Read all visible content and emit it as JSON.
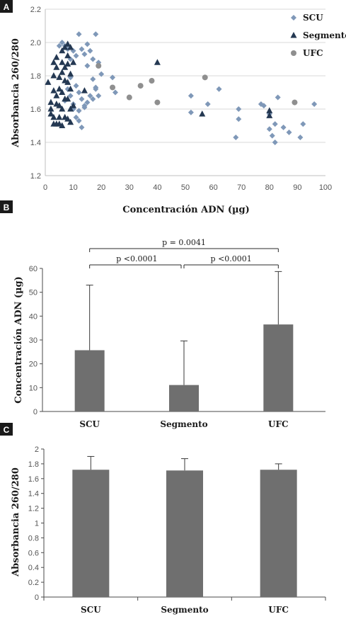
{
  "panels": [
    {
      "letter": "A"
    },
    {
      "letter": "B"
    },
    {
      "letter": "C"
    }
  ],
  "colors": {
    "scu": "#7f98b8",
    "segmento": "#243852",
    "ufc": "#8f8f8f",
    "bar": "#6f6f6f",
    "grid": "#d9d9d9"
  },
  "chart_data": [
    {
      "type": "scatter",
      "xlabel": "Concentración ADN (µg)",
      "ylabel": "Absorbancia 260/280",
      "xlim": [
        0,
        100
      ],
      "ylim": [
        1.2,
        2.2
      ],
      "xticks": [
        0,
        10,
        20,
        30,
        40,
        50,
        60,
        70,
        80,
        90,
        100
      ],
      "yticks": [
        1.2,
        1.4,
        1.6,
        1.8,
        2.0,
        2.2
      ],
      "ytick_labels": [
        "1.2",
        "1.4",
        "1.6",
        "1.8",
        "2.0",
        "2.2"
      ],
      "grid": "horizontal",
      "legend_position": "top-right",
      "series": [
        {
          "name": "SCU",
          "marker": "diamond",
          "points": [
            [
              5,
              1.98
            ],
            [
              6,
              2.0
            ],
            [
              7,
              1.98
            ],
            [
              8,
              1.96
            ],
            [
              9,
              1.9
            ],
            [
              10,
              1.95
            ],
            [
              11,
              1.92
            ],
            [
              12,
              2.05
            ],
            [
              13,
              1.96
            ],
            [
              14,
              1.93
            ],
            [
              15,
              1.99
            ],
            [
              16,
              1.95
            ],
            [
              18,
              2.05
            ],
            [
              17,
              1.9
            ],
            [
              19,
              1.88
            ],
            [
              7,
              1.65
            ],
            [
              8,
              1.72
            ],
            [
              9,
              1.68
            ],
            [
              10,
              1.63
            ],
            [
              11,
              1.74
            ],
            [
              12,
              1.7
            ],
            [
              13,
              1.66
            ],
            [
              14,
              1.61
            ],
            [
              15,
              1.64
            ],
            [
              16,
              1.68
            ],
            [
              17,
              1.66
            ],
            [
              18,
              1.72
            ],
            [
              19,
              1.68
            ],
            [
              20,
              1.81
            ],
            [
              10,
              1.6
            ],
            [
              11,
              1.55
            ],
            [
              12,
              1.53
            ],
            [
              13,
              1.49
            ],
            [
              12,
              1.59
            ],
            [
              14,
              1.62
            ],
            [
              9,
              1.79
            ],
            [
              15,
              1.86
            ],
            [
              17,
              1.78
            ],
            [
              18,
              1.73
            ],
            [
              24,
              1.79
            ],
            [
              25,
              1.7
            ],
            [
              52,
              1.68
            ],
            [
              52,
              1.58
            ],
            [
              58,
              1.63
            ],
            [
              62,
              1.72
            ],
            [
              68,
              1.43
            ],
            [
              69,
              1.6
            ],
            [
              69,
              1.54
            ],
            [
              77,
              1.63
            ],
            [
              78,
              1.62
            ],
            [
              80,
              1.57
            ],
            [
              80,
              1.48
            ],
            [
              81,
              1.44
            ],
            [
              82,
              1.4
            ],
            [
              82,
              1.51
            ],
            [
              83,
              1.67
            ],
            [
              85,
              1.49
            ],
            [
              87,
              1.46
            ],
            [
              89,
              1.64
            ],
            [
              91,
              1.43
            ],
            [
              92,
              1.51
            ],
            [
              96,
              1.63
            ]
          ]
        },
        {
          "name": "Segmento",
          "marker": "triangle",
          "points": [
            [
              1,
              1.76
            ],
            [
              2,
              1.64
            ],
            [
              2,
              1.6
            ],
            [
              2,
              1.57
            ],
            [
              3,
              1.71
            ],
            [
              3,
              1.55
            ],
            [
              3,
              1.51
            ],
            [
              3,
              1.8
            ],
            [
              3,
              1.88
            ],
            [
              4,
              1.91
            ],
            [
              4,
              1.85
            ],
            [
              4,
              1.68
            ],
            [
              4,
              1.63
            ],
            [
              4,
              1.51
            ],
            [
              5,
              1.79
            ],
            [
              5,
              1.72
            ],
            [
              5,
              1.62
            ],
            [
              5,
              1.55
            ],
            [
              5,
              1.51
            ],
            [
              6,
              1.95
            ],
            [
              6,
              1.88
            ],
            [
              6,
              1.82
            ],
            [
              6,
              1.7
            ],
            [
              6,
              1.6
            ],
            [
              6,
              1.5
            ],
            [
              7,
              1.97
            ],
            [
              7,
              1.85
            ],
            [
              7,
              1.77
            ],
            [
              7,
              1.66
            ],
            [
              7,
              1.55
            ],
            [
              8,
              1.99
            ],
            [
              8,
              1.92
            ],
            [
              8,
              1.87
            ],
            [
              8,
              1.76
            ],
            [
              8,
              1.66
            ],
            [
              8,
              1.54
            ],
            [
              9,
              1.97
            ],
            [
              9,
              1.81
            ],
            [
              9,
              1.72
            ],
            [
              9,
              1.6
            ],
            [
              9,
              1.52
            ],
            [
              10,
              1.88
            ],
            [
              10,
              1.62
            ],
            [
              14,
              1.71
            ],
            [
              40,
              1.88
            ],
            [
              56,
              1.57
            ],
            [
              80,
              1.59
            ],
            [
              80,
              1.56
            ]
          ]
        },
        {
          "name": "UFC",
          "marker": "circle",
          "points": [
            [
              19,
              1.86
            ],
            [
              24,
              1.73
            ],
            [
              30,
              1.67
            ],
            [
              34,
              1.74
            ],
            [
              38,
              1.77
            ],
            [
              40,
              1.64
            ],
            [
              57,
              1.79
            ],
            [
              89,
              1.64
            ]
          ]
        }
      ]
    },
    {
      "type": "bar",
      "ylabel": "Concentración ADN (µg)",
      "categories": [
        "SCU",
        "Segmento",
        "UFC"
      ],
      "values": [
        25.7,
        11.1,
        36.5
      ],
      "errors": [
        27.3,
        18.5,
        22.2
      ],
      "ylim": [
        0,
        60
      ],
      "yticks": [
        0,
        10,
        20,
        30,
        40,
        50,
        60
      ],
      "ytick_labels": [
        "0",
        "10",
        "20",
        "30",
        "40",
        "50",
        "60"
      ],
      "annotations": [
        {
          "from": 0,
          "to": 2,
          "text": "p = 0.0041"
        },
        {
          "from": 0,
          "to": 1,
          "text": "p <0.0001"
        },
        {
          "from": 1,
          "to": 2,
          "text": "p <0.0001"
        }
      ]
    },
    {
      "type": "bar",
      "ylabel": "Absorbancia 260/280",
      "categories": [
        "SCU",
        "Segmento",
        "UFC"
      ],
      "values": [
        1.72,
        1.71,
        1.72
      ],
      "errors": [
        0.18,
        0.16,
        0.08
      ],
      "ylim": [
        0,
        2
      ],
      "yticks": [
        0,
        0.2,
        0.4,
        0.6,
        0.8,
        1,
        1.2,
        1.4,
        1.6,
        1.8,
        2
      ],
      "ytick_labels": [
        "0",
        "0.2",
        "0.4",
        "0.6",
        "0.8",
        "1",
        "1.2",
        "1.4",
        "1.6",
        "1.8",
        "2"
      ]
    }
  ]
}
